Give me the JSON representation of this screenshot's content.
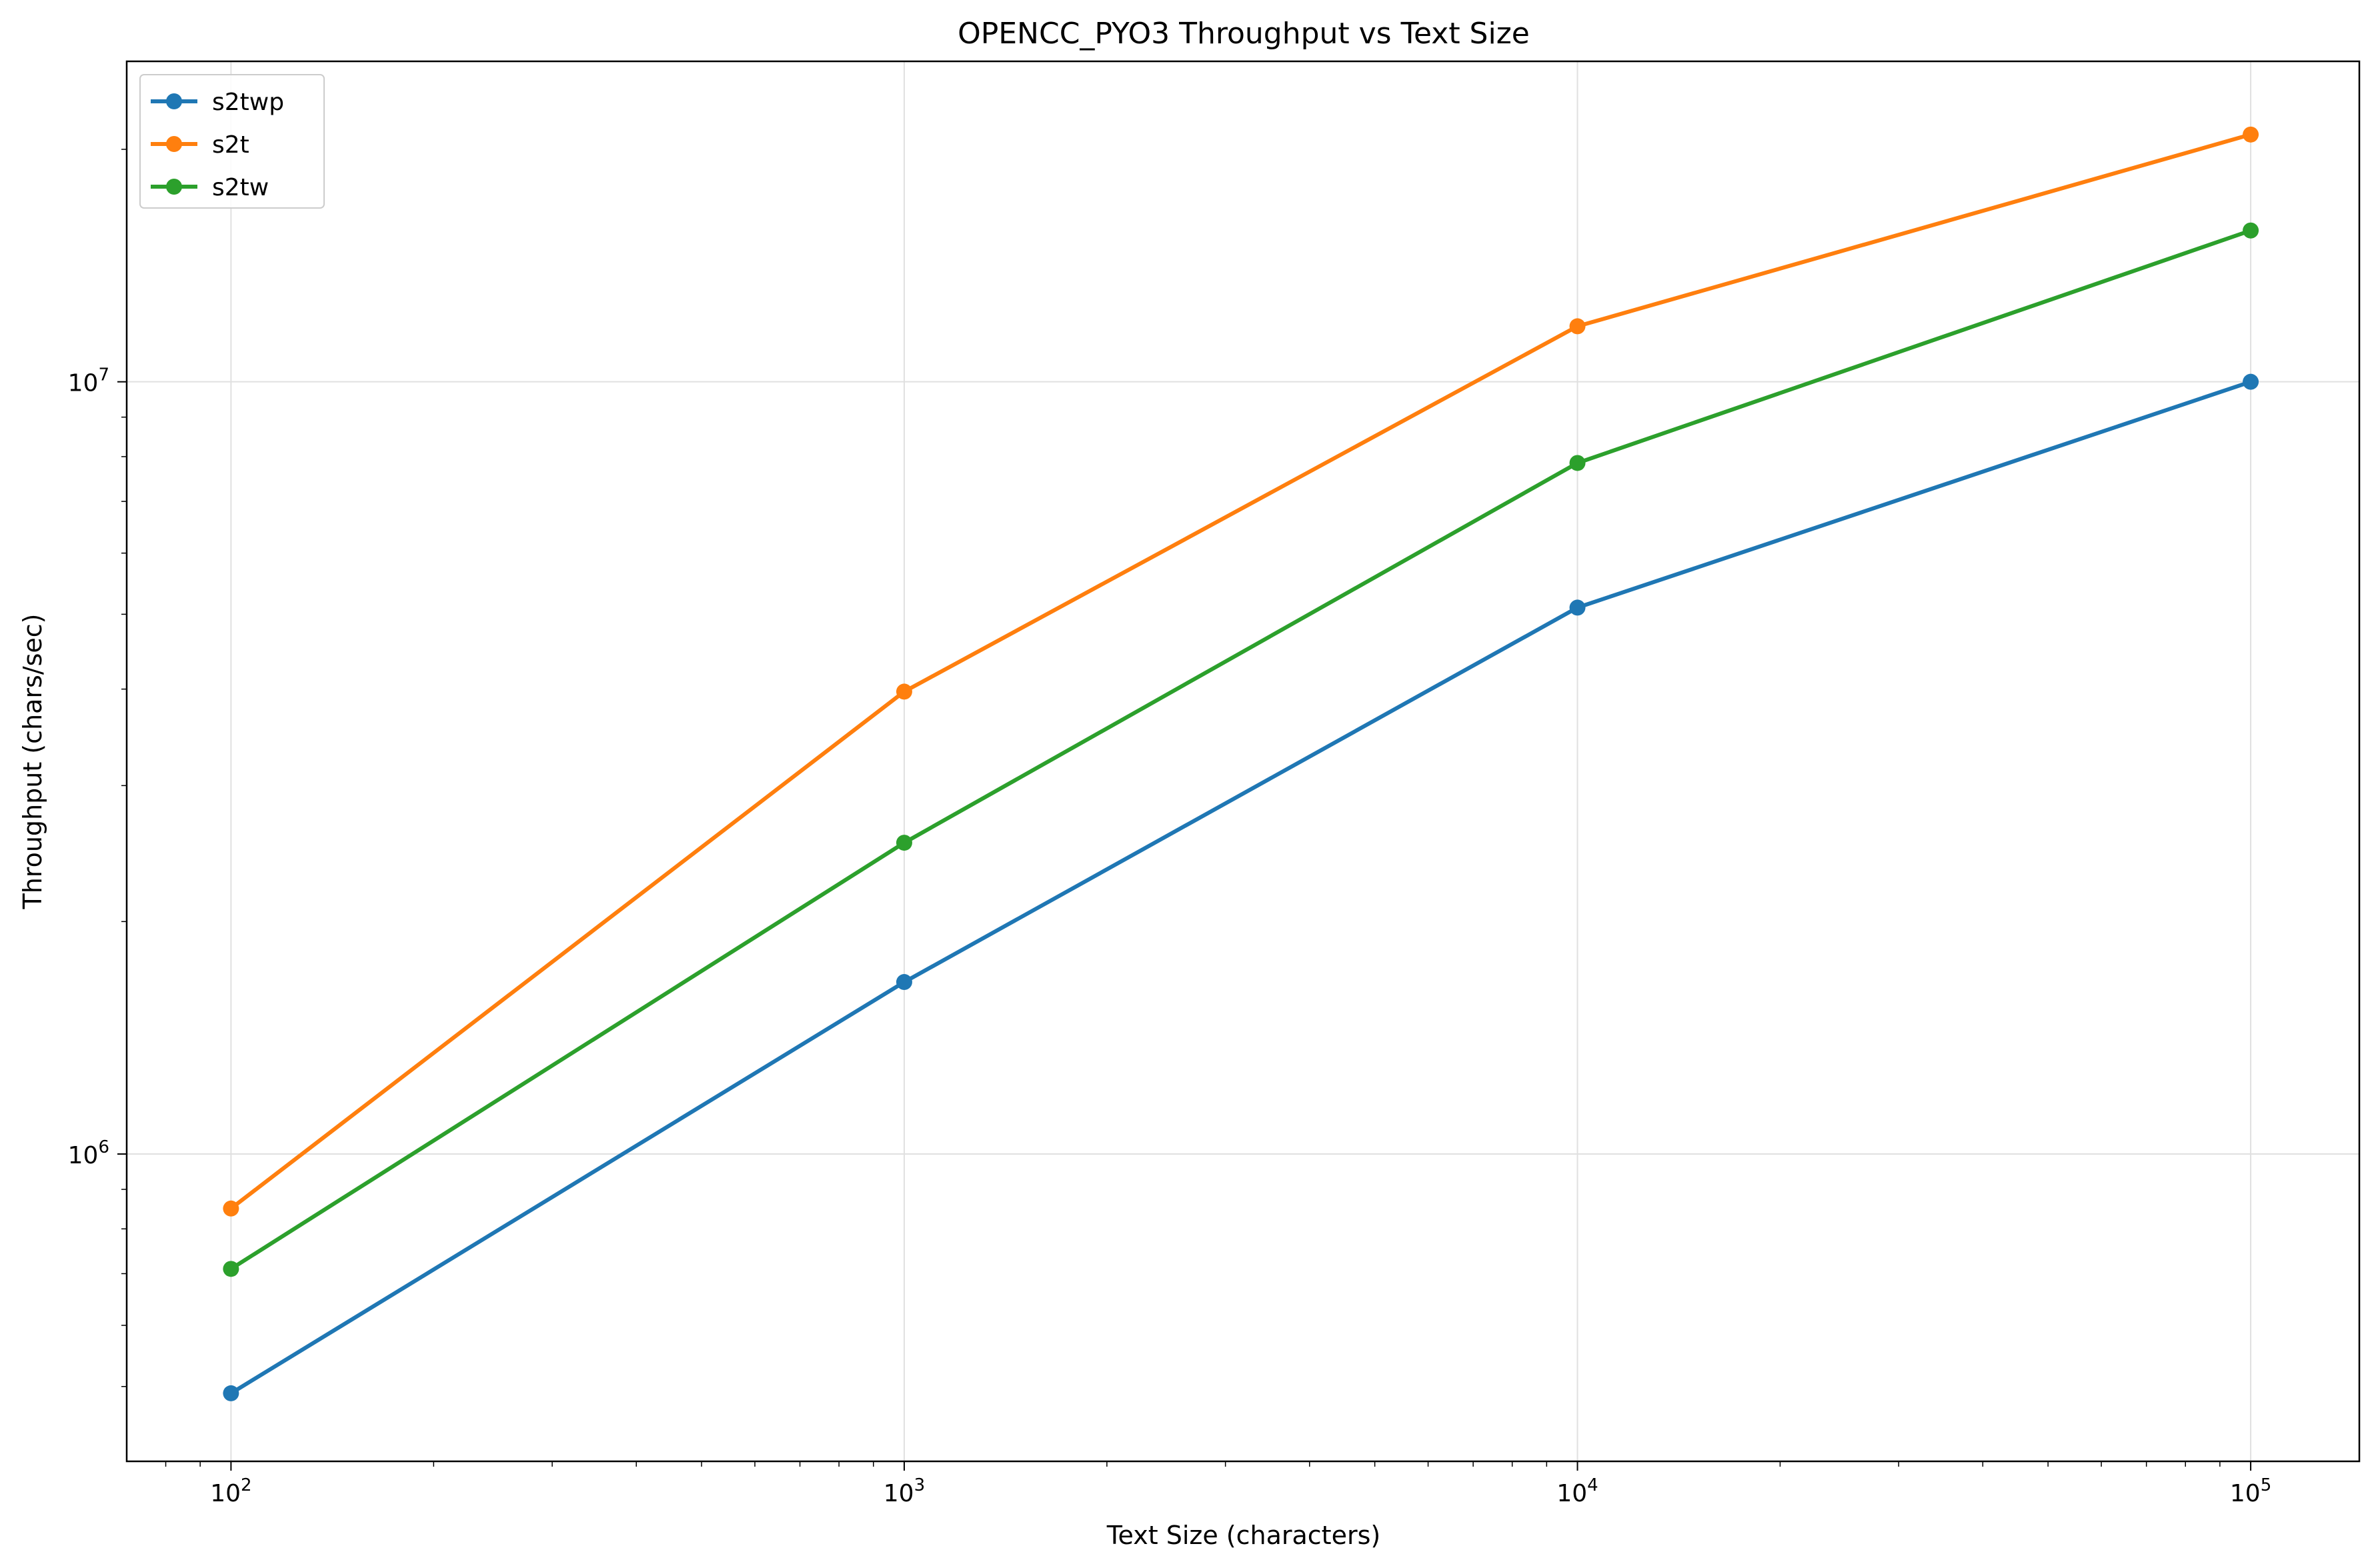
{
  "chart_data": {
    "type": "line",
    "title": "OPENCC_PYO3 Throughput vs Text Size",
    "xlabel": "Text Size (characters)",
    "ylabel": "Throughput (chars/sec)",
    "xscale": "log",
    "yscale": "log",
    "xlim": [
      70,
      145000
    ],
    "ylim": [
      400000,
      26000000
    ],
    "grid": true,
    "legend_position": "top-left",
    "x": [
      100,
      1000,
      10000,
      100000
    ],
    "xtick_labels": [
      {
        "value": 100,
        "base": "10",
        "exp": "2"
      },
      {
        "value": 1000,
        "base": "10",
        "exp": "3"
      },
      {
        "value": 10000,
        "base": "10",
        "exp": "4"
      },
      {
        "value": 100000,
        "base": "10",
        "exp": "5"
      }
    ],
    "ytick_labels": [
      {
        "value": 1000000,
        "base": "10",
        "exp": "6"
      },
      {
        "value": 10000000,
        "base": "10",
        "exp": "7"
      }
    ],
    "series": [
      {
        "name": "s2twp",
        "color": "#1f77b4",
        "values": [
          490000,
          1670000,
          5100000,
          10000000
        ]
      },
      {
        "name": "s2t",
        "color": "#ff7f0e",
        "values": [
          850000,
          3970000,
          11800000,
          20900000
        ]
      },
      {
        "name": "s2tw",
        "color": "#2ca02c",
        "values": [
          710000,
          2530000,
          7850000,
          15700000
        ]
      }
    ]
  }
}
